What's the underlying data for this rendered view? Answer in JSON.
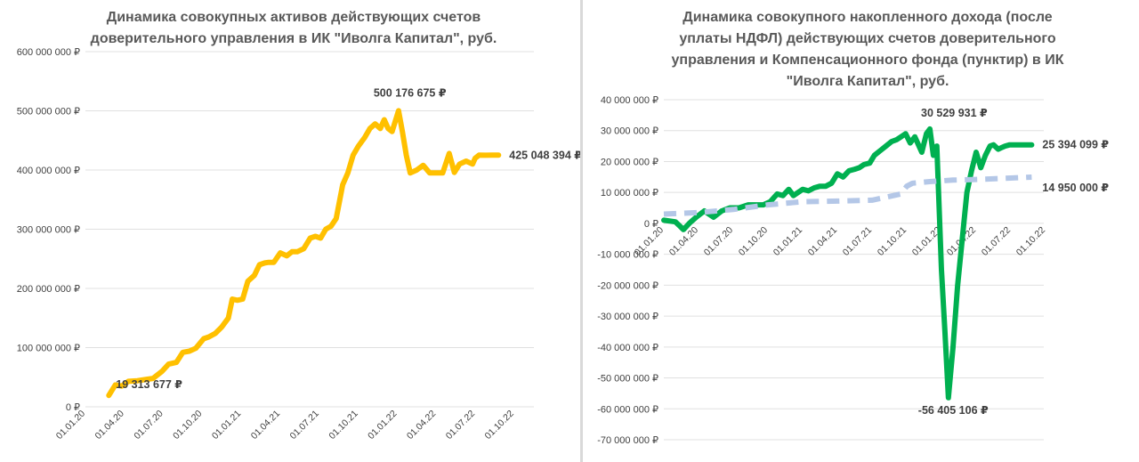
{
  "charts": {
    "left": {
      "title_line1": "Динамика совокупных активов действующих счетов",
      "title_line2": "доверительного управления в ИК \"Иволга Капитал\", руб."
    },
    "right": {
      "title_line1": "Динамика совокупного накопленного дохода (после",
      "title_line2": "уплаты НДФЛ) действующих счетов доверительного",
      "title_line3": "управления и Компенсационного фонда (пунктир) в ИК",
      "title_line4": "\"Иволга Капитал\", руб."
    }
  },
  "chart_data": [
    {
      "type": "line",
      "title": "Динамика совокупных активов действующих счетов доверительного управления в ИК \"Иволга Капитал\", руб.",
      "color": "#FFC000",
      "ylim": [
        0,
        600000000
      ],
      "y_ticks": [
        0,
        100000000,
        200000000,
        300000000,
        400000000,
        500000000,
        600000000
      ],
      "y_tick_labels": [
        "0 ₽",
        "100 000 000 ₽",
        "200 000 000 ₽",
        "300 000 000 ₽",
        "400 000 000 ₽",
        "500 000 000 ₽",
        "600 000 000 ₽"
      ],
      "x_tick_labels": [
        "01.01.20",
        "01.04.20",
        "01.07.20",
        "01.10.20",
        "01.01.21",
        "01.04.21",
        "01.07.21",
        "01.10.21",
        "01.01.22",
        "01.04.22",
        "01.07.22",
        "01.10.22"
      ],
      "x_tick_months": [
        0,
        3,
        6,
        9,
        12,
        15,
        18,
        21,
        24,
        27,
        30,
        33
      ],
      "grid": true,
      "series": [
        {
          "x": [
            1.8,
            2.3,
            2.8,
            3.3,
            4.0,
            4.6,
            5.2,
            5.9,
            6.4,
            7.0,
            7.5,
            8.0,
            8.5,
            9.1,
            9.5,
            10.0,
            10.5,
            11.0,
            11.3,
            11.7,
            12.1,
            12.5,
            13.0,
            13.4,
            13.8,
            14.1,
            14.5,
            15.0,
            15.5,
            15.9,
            16.3,
            16.8,
            17.3,
            17.7,
            18.1,
            18.5,
            18.9,
            19.3,
            19.8,
            20.2,
            20.6,
            21.0,
            21.5,
            21.9,
            22.3,
            22.7,
            23.0,
            23.3,
            23.6,
            24.1,
            24.4,
            24.7,
            25.0,
            25.5,
            26.0,
            26.5,
            27.0,
            27.5,
            28.0,
            28.4,
            28.8,
            29.3,
            29.8,
            30.0,
            30.3,
            30.8,
            31.3,
            31.8
          ],
          "y": [
            19313677,
            37000000,
            35000000,
            43000000,
            44000000,
            46000000,
            48000000,
            60000000,
            72000000,
            75000000,
            92000000,
            94000000,
            99000000,
            115000000,
            118000000,
            124000000,
            135000000,
            150000000,
            182000000,
            180000000,
            182000000,
            212000000,
            222000000,
            240000000,
            243000000,
            244000000,
            244000000,
            260000000,
            255000000,
            262000000,
            262000000,
            267000000,
            285000000,
            288000000,
            285000000,
            300000000,
            305000000,
            318000000,
            375000000,
            395000000,
            425000000,
            440000000,
            455000000,
            470000000,
            478000000,
            470000000,
            485000000,
            470000000,
            465000000,
            500176675,
            465000000,
            425000000,
            395000000,
            400000000,
            408000000,
            395000000,
            395000000,
            395000000,
            428000000,
            396000000,
            410000000,
            415000000,
            410000000,
            420000000,
            425048394,
            425000000,
            425048394,
            425048394
          ]
        }
      ],
      "annotations": [
        {
          "label": "19 313 677 ₽",
          "x": 1.8,
          "y": 19313677
        },
        {
          "label": "500 176 675 ₽",
          "x": 24.1,
          "y": 500176675
        },
        {
          "label": "425 048 394 ₽",
          "x": 31.8,
          "y": 425048394
        }
      ]
    },
    {
      "type": "line",
      "title": "Динамика совокупного накопленного дохода (после уплаты НДФЛ) действующих счетов доверительного управления и Компенсационного фонда (пунктир) в ИК \"Иволга Капитал\", руб.",
      "ylim": [
        -70000000,
        40000000
      ],
      "y_ticks": [
        -70000000,
        -60000000,
        -50000000,
        -40000000,
        -30000000,
        -20000000,
        -10000000,
        0,
        10000000,
        20000000,
        30000000,
        40000000
      ],
      "y_tick_labels": [
        "-70 000 000 ₽",
        "-60 000 000 ₽",
        "-50 000 000 ₽",
        "-40 000 000 ₽",
        "-30 000 000 ₽",
        "-20 000 000 ₽",
        "-10 000 000 ₽",
        "0 ₽",
        "10 000 000 ₽",
        "20 000 000 ₽",
        "30 000 000 ₽",
        "40 000 000 ₽"
      ],
      "x_tick_labels": [
        "01.01.20",
        "01.04.20",
        "01.07.20",
        "01.10.20",
        "01.01.21",
        "01.04.21",
        "01.07.21",
        "01.10.21",
        "01.01.22",
        "01.04.22",
        "01.07.22",
        "01.10.22"
      ],
      "x_tick_months": [
        0,
        3,
        6,
        9,
        12,
        15,
        18,
        21,
        24,
        27,
        30,
        33
      ],
      "grid": true,
      "series": [
        {
          "color": "#00B050",
          "dashed": false,
          "x": [
            0.0,
            1.0,
            1.7,
            2.2,
            2.8,
            3.5,
            4.3,
            5.0,
            5.7,
            6.5,
            7.3,
            8.0,
            8.6,
            9.2,
            9.8,
            10.3,
            10.8,
            11.2,
            11.6,
            12.0,
            12.5,
            13.0,
            13.5,
            14.0,
            14.5,
            15.0,
            15.5,
            16.0,
            16.5,
            16.9,
            17.3,
            17.8,
            18.2,
            18.7,
            19.2,
            19.7,
            20.1,
            20.5,
            20.9,
            21.3,
            21.7,
            22.0,
            22.3,
            22.7,
            23.0,
            23.3,
            23.6,
            24.0,
            24.3,
            24.6,
            25.0,
            25.4,
            25.8,
            26.2,
            26.6,
            27.0,
            27.4,
            27.8,
            28.2,
            28.5,
            28.9,
            29.2,
            29.5,
            29.9,
            30.2,
            30.6,
            31.0,
            31.4,
            31.8
          ],
          "y": [
            1000000,
            500000,
            -2000000,
            0,
            2000000,
            4000000,
            2000000,
            4000000,
            5000000,
            5000000,
            6000000,
            6000000,
            6000000,
            7000000,
            9500000,
            9000000,
            11000000,
            9000000,
            10000000,
            11000000,
            10500000,
            11500000,
            12000000,
            12000000,
            13000000,
            16000000,
            15000000,
            17000000,
            17500000,
            18000000,
            19000000,
            19500000,
            22000000,
            23500000,
            25000000,
            26500000,
            27000000,
            28000000,
            29000000,
            26000000,
            28000000,
            25500000,
            23000000,
            29000000,
            30529931,
            22000000,
            25000000,
            -15000000,
            -35000000,
            -56405106,
            -40000000,
            -20000000,
            -5000000,
            10000000,
            17000000,
            23000000,
            18000000,
            22000000,
            25000000,
            25394099,
            24000000,
            24500000,
            25000000,
            25394099,
            25394099,
            25394099,
            25394099,
            25394099,
            25394099
          ]
        },
        {
          "color": "#B4C7E7",
          "dashed": true,
          "x": [
            0.0,
            3.0,
            6.0,
            9.0,
            12.0,
            15.0,
            18.0,
            20.5,
            21.0,
            21.5,
            23.0,
            25.0,
            27.0,
            29.0,
            31.8
          ],
          "y": [
            3000000,
            3500000,
            4500000,
            6000000,
            7000000,
            7200000,
            7500000,
            9500000,
            12000000,
            13000000,
            13500000,
            14000000,
            14200000,
            14500000,
            14950000
          ]
        }
      ],
      "annotations": [
        {
          "label": "30 529 931 ₽",
          "x": 23.0,
          "y": 30529931
        },
        {
          "label": "25 394 099 ₽",
          "x": 31.8,
          "y": 25394099
        },
        {
          "label": "14 950 000 ₽",
          "x": 31.8,
          "y": 14950000
        },
        {
          "label": "-56 405 106 ₽",
          "x": 24.6,
          "y": -56405106
        }
      ]
    }
  ]
}
